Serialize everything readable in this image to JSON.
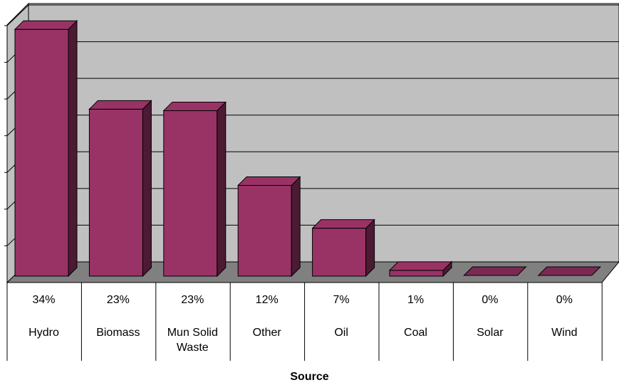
{
  "chart_data": {
    "type": "bar",
    "title": "",
    "xlabel": "Source",
    "ylabel": "",
    "categories": [
      "Hydro",
      "Biomass",
      "Mun Solid Waste",
      "Other",
      "Oil",
      "Coal",
      "Solar",
      "Wind"
    ],
    "value_labels": [
      "34%",
      "23%",
      "23%",
      "12%",
      "7%",
      "1%",
      "0%",
      "0%"
    ],
    "values": [
      34.0,
      23.0,
      22.8,
      12.5,
      6.6,
      0.8,
      0,
      0
    ],
    "ylim": [
      0,
      35
    ],
    "grid": true,
    "legend": "none",
    "colors": {
      "bar_front": "#993366",
      "bar_side": "#4D1A33",
      "bar_top": "#7A2A52",
      "wall": "#C0C0C0",
      "floor": "#808080"
    }
  }
}
